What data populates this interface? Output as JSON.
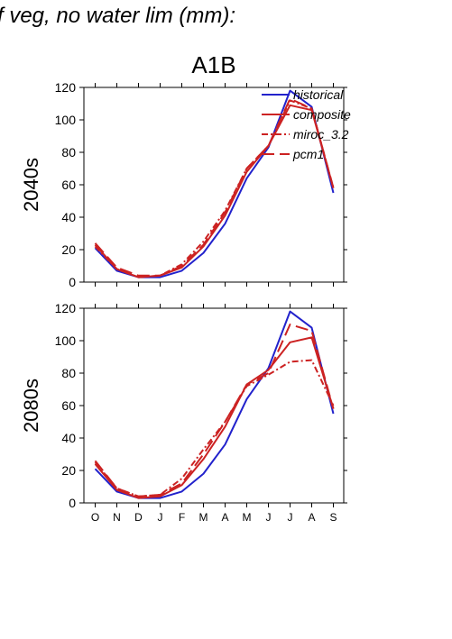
{
  "figure_title": "f veg, no water lim (mm):",
  "chart_data": {
    "type": "line",
    "scenario_title": "A1B",
    "months": [
      "O",
      "N",
      "D",
      "J",
      "F",
      "M",
      "A",
      "M",
      "J",
      "J",
      "A",
      "S"
    ],
    "ylim": [
      0,
      120
    ],
    "yticks": [
      0,
      20,
      40,
      60,
      80,
      100,
      120
    ],
    "legend_placement": "top-right",
    "styles": {
      "historical": {
        "color": "#2222cc",
        "dash": ""
      },
      "composite": {
        "color": "#cc2222",
        "dash": ""
      },
      "miroc_3.2": {
        "color": "#cc2222",
        "dash": "7 3 2 3"
      },
      "pcm1": {
        "color": "#cc2222",
        "dash": "14 6"
      }
    },
    "panels": [
      {
        "ylabel": "2040s",
        "series": [
          {
            "name": "historical",
            "values": [
              21,
              7,
              3,
              3,
              7,
              18,
              36,
              64,
              83,
              118,
              108,
              55
            ]
          },
          {
            "name": "composite",
            "values": [
              23,
              8,
              3,
              4,
              9,
              22,
              41,
              68,
              84,
              109,
              106,
              58
            ]
          },
          {
            "name": "miroc_3.2",
            "values": [
              22,
              8,
              3,
              4,
              11,
              25,
              44,
              70,
              84,
              112,
              107,
              58
            ]
          },
          {
            "name": "pcm1",
            "values": [
              24,
              9,
              4,
              4,
              10,
              23,
              43,
              70,
              84,
              113,
              107,
              58
            ]
          }
        ]
      },
      {
        "ylabel": "2080s",
        "series": [
          {
            "name": "historical",
            "values": [
              21,
              7,
              3,
              3,
              7,
              18,
              36,
              64,
              83,
              118,
              108,
              55
            ]
          },
          {
            "name": "composite",
            "values": [
              24,
              8,
              3,
              4,
              11,
              27,
              47,
              73,
              82,
              99,
              102,
              58
            ]
          },
          {
            "name": "miroc_3.2",
            "values": [
              25,
              9,
              4,
              5,
              15,
              33,
              50,
              72,
              79,
              87,
              88,
              60
            ]
          },
          {
            "name": "pcm1",
            "values": [
              26,
              9,
              4,
              5,
              12,
              30,
              50,
              73,
              80,
              110,
              106,
              58
            ]
          }
        ]
      }
    ]
  }
}
